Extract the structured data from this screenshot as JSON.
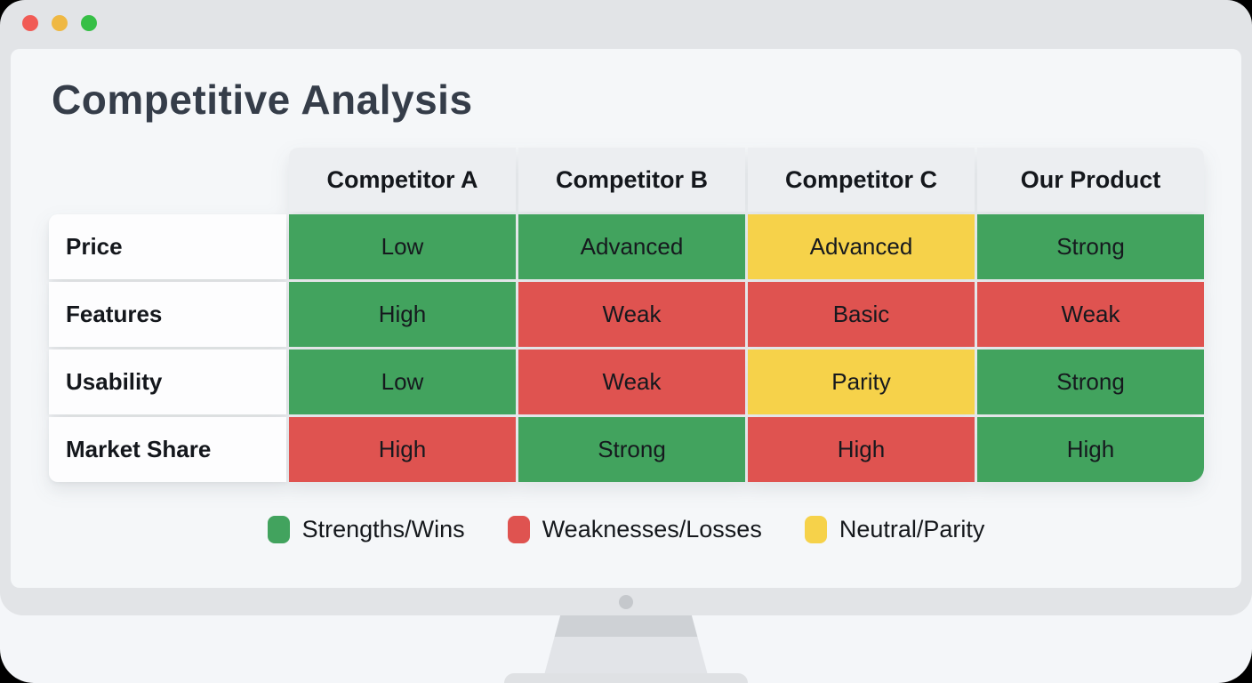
{
  "window": {
    "controls": [
      {
        "name": "close",
        "color": "#f15b55"
      },
      {
        "name": "minimize",
        "color": "#efb843"
      },
      {
        "name": "maximize",
        "color": "#36bf46"
      }
    ]
  },
  "page": {
    "title": "Competitive Analysis"
  },
  "chart_data": {
    "type": "table",
    "title": "Competitive Analysis",
    "columns": [
      "Competitor A",
      "Competitor B",
      "Competitor C",
      "Our Product"
    ],
    "rows": [
      {
        "label": "Price",
        "cells": [
          {
            "text": "Low",
            "status": "green"
          },
          {
            "text": "Advanced",
            "status": "green"
          },
          {
            "text": "Advanced",
            "status": "yellow"
          },
          {
            "text": "Strong",
            "status": "green"
          }
        ]
      },
      {
        "label": "Features",
        "cells": [
          {
            "text": "High",
            "status": "green"
          },
          {
            "text": "Weak",
            "status": "red"
          },
          {
            "text": "Basic",
            "status": "red"
          },
          {
            "text": "Weak",
            "status": "red"
          }
        ]
      },
      {
        "label": "Usability",
        "cells": [
          {
            "text": "Low",
            "status": "green"
          },
          {
            "text": "Weak",
            "status": "red"
          },
          {
            "text": "Parity",
            "status": "yellow"
          },
          {
            "text": "Strong",
            "status": "green"
          }
        ]
      },
      {
        "label": "Market Share",
        "cells": [
          {
            "text": "High",
            "status": "red"
          },
          {
            "text": "Strong",
            "status": "green"
          },
          {
            "text": "High",
            "status": "red"
          },
          {
            "text": "High",
            "status": "green"
          }
        ]
      }
    ]
  },
  "legend": [
    {
      "label": "Strengths/Wins",
      "status": "green"
    },
    {
      "label": "Weaknesses/Losses",
      "status": "red"
    },
    {
      "label": "Neutral/Parity",
      "status": "yellow"
    }
  ],
  "colors": {
    "status": {
      "green": "#42a35e",
      "red": "#df5350",
      "yellow": "#f6d24a"
    },
    "frame": "#e2e4e7",
    "screen_bg": "#f5f7f9",
    "header_bg": "#eceef1",
    "label_bg": "#fdfdfe"
  }
}
